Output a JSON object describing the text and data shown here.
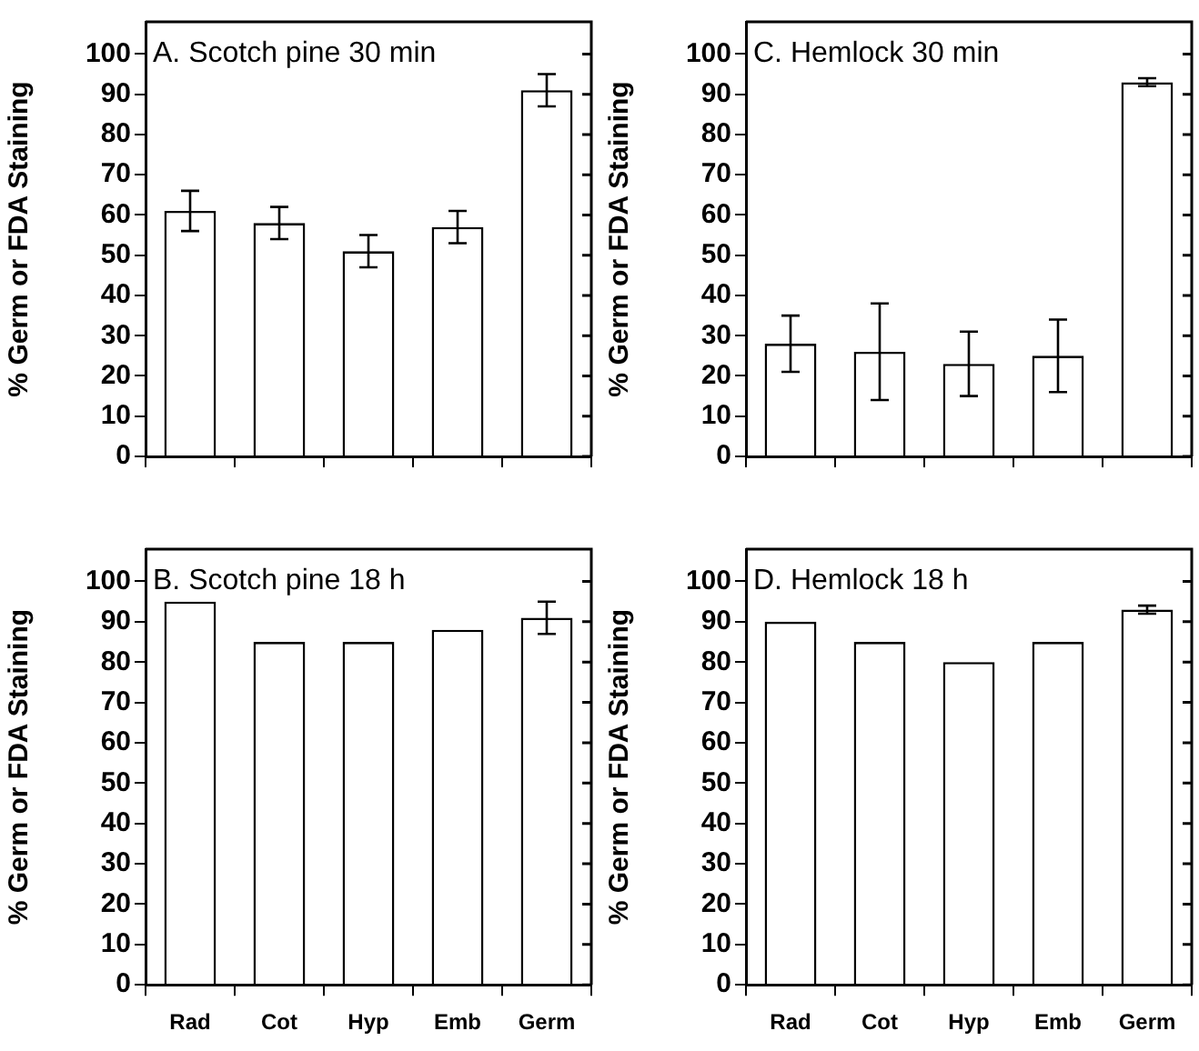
{
  "chart_data": [
    {
      "type": "bar",
      "title": "A. Scotch pine 30 min",
      "ylabel": "% Germ or FDA Staining",
      "categories": [
        null,
        null,
        null,
        null,
        null
      ],
      "values": [
        61,
        58,
        51,
        57,
        91
      ],
      "errors": [
        5,
        4,
        4,
        4,
        4
      ],
      "colors": [
        "#ffffff",
        "#ffffff",
        "#ffffff",
        "#ffffff",
        "#ffffff"
      ],
      "ylim": [
        0,
        108
      ],
      "yticks": [
        0,
        10,
        20,
        30,
        40,
        50,
        60,
        70,
        80,
        90,
        100
      ],
      "tick_labels": "y"
    },
    {
      "type": "bar",
      "title": "C. Hemlock 30 min",
      "ylabel": "% Germ or FDA Staining",
      "categories": [
        null,
        null,
        null,
        null,
        null
      ],
      "values": [
        28,
        26,
        23,
        25,
        93
      ],
      "errors": [
        7,
        12,
        8,
        9,
        1
      ],
      "colors": [
        "#ffffff",
        "#ffffff",
        "#ffffff",
        "#ffffff",
        "#ffffff"
      ],
      "ylim": [
        0,
        108
      ],
      "yticks": [
        0,
        10,
        20,
        30,
        40,
        50,
        60,
        70,
        80,
        90,
        100
      ],
      "tick_labels": "y"
    },
    {
      "type": "bar",
      "title": "B. Scotch pine 18 h",
      "ylabel": "% Germ or FDA Staining",
      "categories": [
        "Rad",
        "Cot",
        "Hyp",
        "Emb",
        "Germ"
      ],
      "values": [
        95,
        85,
        85,
        88,
        91
      ],
      "errors": [
        null,
        null,
        null,
        null,
        4
      ],
      "colors": [
        "#ffffff",
        "#ffffff",
        "#ffffff",
        "#ffffff",
        "#ffffff"
      ],
      "ylim": [
        0,
        108
      ],
      "yticks": [
        0,
        10,
        20,
        30,
        40,
        50,
        60,
        70,
        80,
        90,
        100
      ]
    },
    {
      "type": "bar",
      "title": "D. Hemlock 18 h",
      "ylabel": "% Germ or FDA Staining",
      "categories": [
        "Rad",
        "Cot",
        "Hyp",
        "Emb",
        "Germ"
      ],
      "values": [
        90,
        85,
        80,
        85,
        93
      ],
      "errors": [
        null,
        null,
        null,
        null,
        1
      ],
      "colors": [
        "#ffffff",
        "#ffffff",
        "#ffffff",
        "#ffffff",
        "#ffffff"
      ],
      "ylim": [
        0,
        108
      ],
      "yticks": [
        0,
        10,
        20,
        30,
        40,
        50,
        60,
        70,
        80,
        90,
        100
      ]
    }
  ]
}
